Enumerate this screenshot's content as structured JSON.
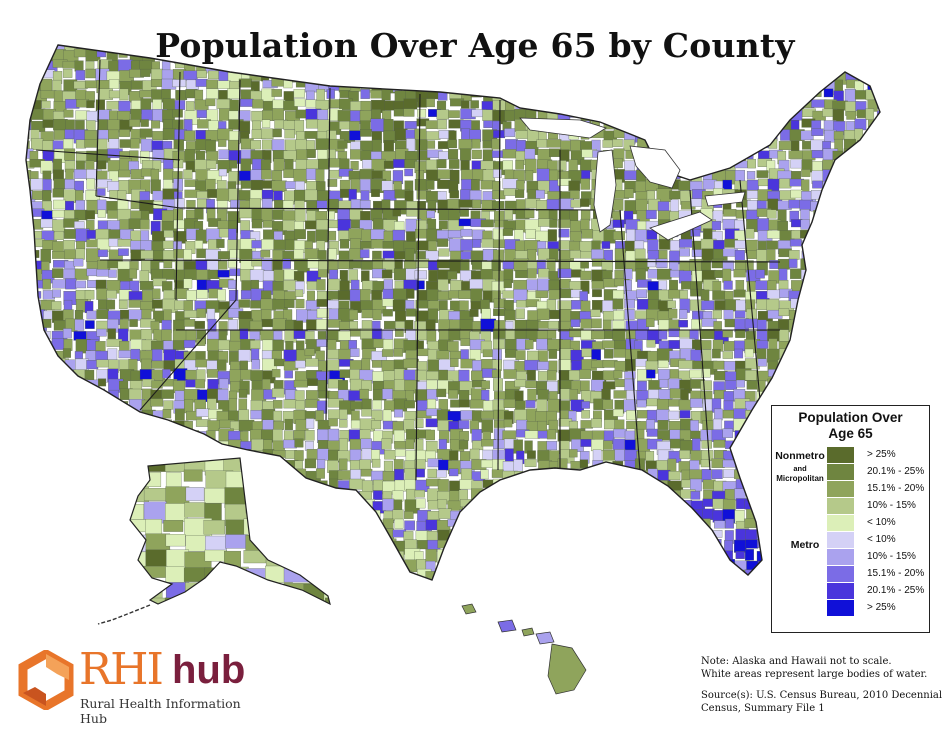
{
  "title": "Population Over Age 65 by County",
  "legend": {
    "title_line1": "Population Over",
    "title_line2": "Age 65",
    "nonmetro_label": "Nonmetro",
    "and_label": "and",
    "micropolitan_label": "Micropolitan",
    "metro_label": "Metro",
    "nonmetro_classes": [
      {
        "label": "> 25%",
        "color": "#5a6b2c"
      },
      {
        "label": "20.1% - 25%",
        "color": "#6f8540"
      },
      {
        "label": "15.1% - 20%",
        "color": "#8fa45c"
      },
      {
        "label": "10% - 15%",
        "color": "#b5c98a"
      },
      {
        "label": "< 10%",
        "color": "#dcefb8"
      }
    ],
    "metro_classes": [
      {
        "label": "< 10%",
        "color": "#d4d1f6"
      },
      {
        "label": "10% - 15%",
        "color": "#aaa2ee"
      },
      {
        "label": "15.1% - 20%",
        "color": "#7b6ce6"
      },
      {
        "label": "20.1% - 25%",
        "color": "#4a35dc"
      },
      {
        "label": "> 25%",
        "color": "#1010d8"
      }
    ]
  },
  "notes": {
    "line1": "Note: Alaska and Hawaii not to scale.",
    "line2": "White areas represent large bodies of water.",
    "source1": "Source(s): U.S. Census Bureau, 2010 Decennial",
    "source2": "Census, Summary File 1"
  },
  "logo": {
    "rhi": "RHI",
    "hub": "hub",
    "subtitle": "Rural Health Information Hub"
  }
}
